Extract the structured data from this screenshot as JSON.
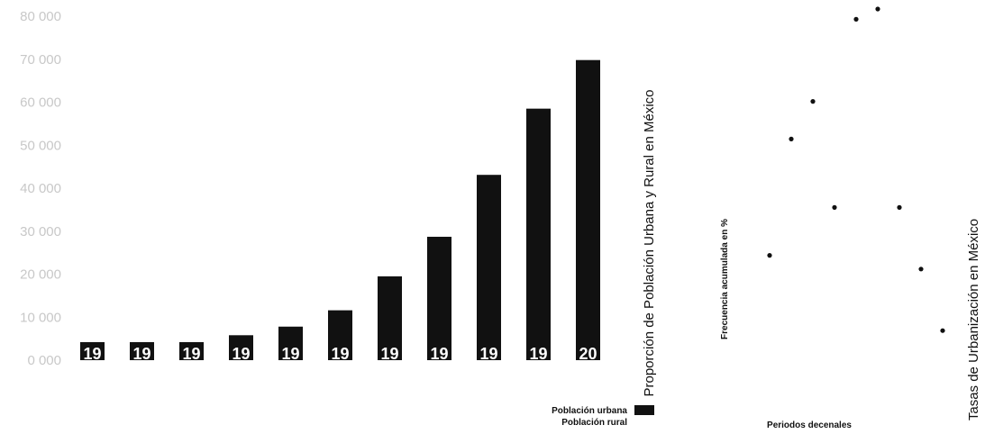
{
  "chart_data": [
    {
      "type": "bar",
      "title": "Proporción de Población Urbana y Rural en México",
      "y_ticks": [
        "0 000",
        "10 000",
        "20 000",
        "30 000",
        "40 000",
        "50 000",
        "60 000",
        "70 000",
        "80 000"
      ],
      "ylim": [
        0,
        80000
      ],
      "categories": [
        "19",
        "19",
        "19",
        "19",
        "19",
        "19",
        "19",
        "19",
        "19",
        "19",
        "20"
      ],
      "series": [
        {
          "name": "Población urbana",
          "color": "#111111",
          "values": [
            4200,
            4200,
            4200,
            5800,
            7800,
            11600,
            19500,
            28700,
            43100,
            58500,
            69800
          ]
        }
      ],
      "legend": {
        "position": "bottom-right",
        "entries": [
          "Población urbana",
          "Población rural"
        ]
      },
      "grid": false
    },
    {
      "type": "scatter",
      "title": "Tasas de Urbanización en México",
      "xlabel": "Periodos decenales",
      "ylabel": "Frecuencia acumulada en %",
      "xlim": [
        0,
        10
      ],
      "ylim": [
        0,
        100
      ],
      "points": [
        {
          "x": 1,
          "y": 28
        },
        {
          "x": 2,
          "y": 62
        },
        {
          "x": 3,
          "y": 73
        },
        {
          "x": 4,
          "y": 42
        },
        {
          "x": 5,
          "y": 97
        },
        {
          "x": 6,
          "y": 100
        },
        {
          "x": 7,
          "y": 42
        },
        {
          "x": 8,
          "y": 24
        },
        {
          "x": 9,
          "y": 6
        }
      ],
      "grid": false
    }
  ]
}
